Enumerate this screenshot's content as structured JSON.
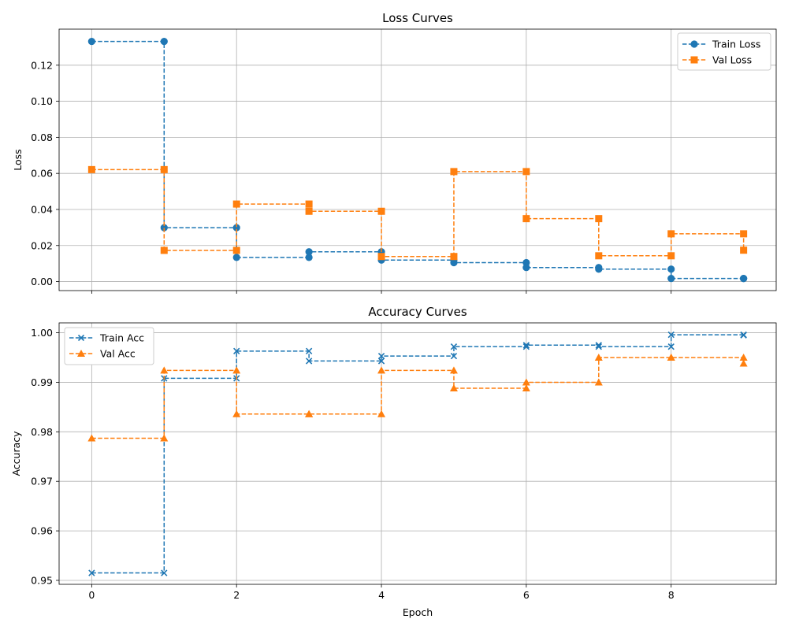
{
  "colors": {
    "blue": "#1f77b4",
    "orange": "#ff7f0e"
  },
  "chart_data": [
    {
      "type": "line",
      "title": "Loss Curves",
      "xlabel": "",
      "ylabel": "Loss",
      "drawstyle": "steps-post",
      "linestyle": "dashed",
      "grid": true,
      "legend_position": "top-right",
      "xlim": [
        -0.45,
        9.45
      ],
      "ylim": [
        -0.005,
        0.14
      ],
      "xticks": [
        0,
        2,
        4,
        6,
        8
      ],
      "xtick_labels": [
        "",
        "",
        "",
        "",
        ""
      ],
      "yticks": [
        0.0,
        0.02,
        0.04,
        0.06,
        0.08,
        0.1,
        0.12
      ],
      "ytick_labels": [
        "0.00",
        "0.02",
        "0.04",
        "0.06",
        "0.08",
        "0.10",
        "0.12"
      ],
      "x": [
        0,
        1,
        1,
        2,
        2,
        3,
        3,
        4,
        4,
        5,
        5,
        6,
        6,
        7,
        7,
        8,
        8,
        9,
        9
      ],
      "series": [
        {
          "name": "Train Loss",
          "color": "#1f77b4",
          "marker": "circle",
          "values": [
            0.1332,
            0.1332,
            0.0299,
            0.0299,
            0.0134,
            0.0134,
            0.0165,
            0.0165,
            0.0119,
            0.0119,
            0.0105,
            0.0105,
            0.0078,
            0.0078,
            0.0069,
            0.0069,
            0.0017,
            0.0017,
            0.0017
          ]
        },
        {
          "name": "Val Loss",
          "color": "#ff7f0e",
          "marker": "square",
          "values": [
            0.0621,
            0.0621,
            0.0173,
            0.0173,
            0.043,
            0.043,
            0.039,
            0.039,
            0.0139,
            0.0139,
            0.061,
            0.061,
            0.0349,
            0.0349,
            0.0143,
            0.0143,
            0.0265,
            0.0265,
            0.0174
          ]
        }
      ]
    },
    {
      "type": "line",
      "title": "Accuracy Curves",
      "xlabel": "Epoch",
      "ylabel": "Accuracy",
      "drawstyle": "steps-post",
      "linestyle": "dashed",
      "grid": true,
      "legend_position": "top-left",
      "xlim": [
        -0.45,
        9.45
      ],
      "ylim": [
        0.9492,
        1.002
      ],
      "xticks": [
        0,
        2,
        4,
        6,
        8
      ],
      "xtick_labels": [
        "0",
        "2",
        "4",
        "6",
        "8"
      ],
      "yticks": [
        0.95,
        0.96,
        0.97,
        0.98,
        0.99,
        1.0
      ],
      "ytick_labels": [
        "0.95",
        "0.96",
        "0.97",
        "0.98",
        "0.99",
        "1.00"
      ],
      "x": [
        0,
        1,
        1,
        2,
        2,
        3,
        3,
        4,
        4,
        5,
        5,
        6,
        6,
        7,
        7,
        8,
        8,
        9,
        9
      ],
      "series": [
        {
          "name": "Train Acc",
          "color": "#1f77b4",
          "marker": "x",
          "values": [
            0.9515,
            0.9515,
            0.9908,
            0.9908,
            0.9963,
            0.9963,
            0.9943,
            0.9943,
            0.9953,
            0.9953,
            0.9972,
            0.9972,
            0.9975,
            0.9975,
            0.9972,
            0.9972,
            0.9996,
            0.9996,
            0.9995
          ]
        },
        {
          "name": "Val Acc",
          "color": "#ff7f0e",
          "marker": "triangle",
          "values": [
            0.9787,
            0.9787,
            0.9924,
            0.9924,
            0.9836,
            0.9836,
            0.9836,
            0.9836,
            0.9924,
            0.9924,
            0.9888,
            0.9888,
            0.99,
            0.99,
            0.995,
            0.995,
            0.995,
            0.995,
            0.9938
          ]
        }
      ]
    }
  ]
}
